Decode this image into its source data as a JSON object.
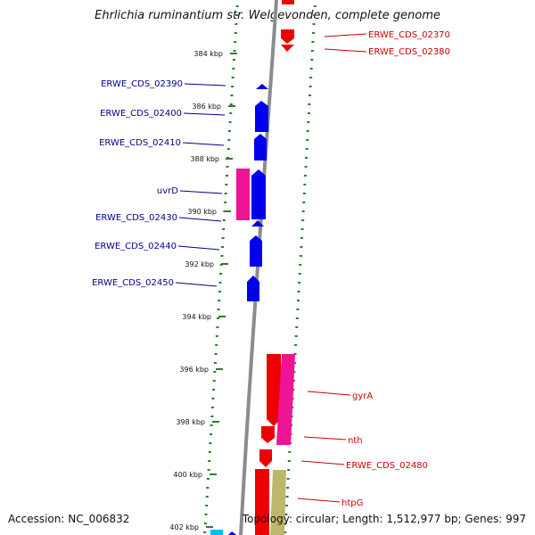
{
  "title": "Ehrlichia ruminantium str. Welgevonden, complete genome",
  "footer": {
    "accession": "Accession: NC_006832",
    "summary": "Topology: circular; Length: 1,512,977 bp; Genes: 997"
  },
  "colors": {
    "backbone": "#8c8c8c",
    "tick": "#2e7d2e",
    "reverse_label": "#00008b",
    "forward_label": "#cc0000",
    "blue_gene": "#0000ee",
    "red_gene": "#ee0000",
    "pink_gene": "#ee1493",
    "khaki_gene": "#bdb76b",
    "cyan_gene": "#00bfff"
  },
  "ticks": [
    "384 kbp",
    "386 kbp",
    "388 kbp",
    "390 kbp",
    "392 kbp",
    "394 kbp",
    "396 kbp",
    "398 kbp",
    "400 kbp",
    "402 kbp"
  ],
  "labels_left": [
    "ERWE_CDS_02390",
    "ERWE_CDS_02400",
    "ERWE_CDS_02410",
    "uvrD",
    "ERWE_CDS_02430",
    "ERWE_CDS_02440",
    "ERWE_CDS_02450"
  ],
  "labels_right": [
    "ERWE_CDS_02370",
    "ERWE_CDS_02380",
    "gyrA",
    "nth",
    "ERWE_CDS_02480",
    "htpG"
  ]
}
